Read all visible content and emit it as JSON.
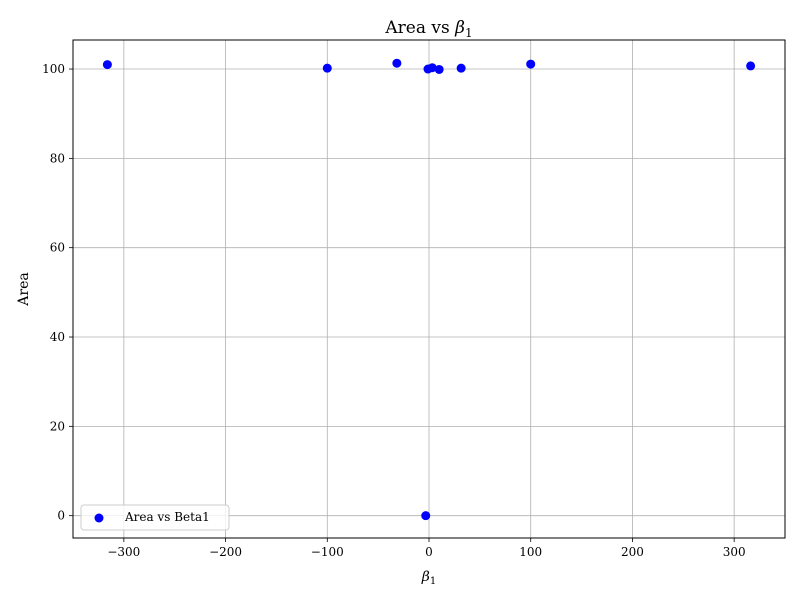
{
  "chart_data": {
    "type": "scatter",
    "title_text": "Area vs ",
    "title_symbol": "β",
    "title_subscript": "1",
    "xlabel_symbol": "β",
    "xlabel_subscript": "1",
    "ylabel": "Area",
    "xlim": [
      -350,
      350
    ],
    "ylim": [
      -5,
      106.5
    ],
    "xticks": [
      -300,
      -200,
      -100,
      0,
      100,
      200,
      300
    ],
    "xtick_labels": [
      "−300",
      "−200",
      "−100",
      "0",
      "100",
      "200",
      "300"
    ],
    "yticks": [
      0,
      20,
      40,
      60,
      80,
      100
    ],
    "ytick_labels": [
      "0",
      "20",
      "40",
      "60",
      "80",
      "100"
    ],
    "grid": true,
    "legend_position": "lower-left",
    "series": [
      {
        "name": "Area vs Beta1",
        "color": "#0000ff",
        "points": [
          {
            "x": -316.2,
            "y": 101.0
          },
          {
            "x": -100,
            "y": 100.2
          },
          {
            "x": -31.6,
            "y": 101.3
          },
          {
            "x": -3.2,
            "y": 0.0
          },
          {
            "x": -1,
            "y": 100.0
          },
          {
            "x": 3.2,
            "y": 100.3
          },
          {
            "x": 10,
            "y": 99.9
          },
          {
            "x": 31.6,
            "y": 100.2
          },
          {
            "x": 100,
            "y": 101.1
          },
          {
            "x": 316.2,
            "y": 100.7
          }
        ]
      }
    ]
  }
}
